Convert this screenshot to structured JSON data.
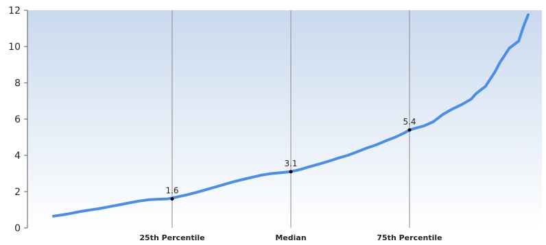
{
  "chart_data": {
    "type": "line",
    "title": "",
    "xlabel": "",
    "ylabel": "",
    "ylim": [
      0,
      12
    ],
    "yticks": [
      "0",
      "2",
      "4",
      "6",
      "8",
      "10",
      "12"
    ],
    "xlim": [
      0,
      100
    ],
    "grid": {
      "x": true,
      "y": false
    },
    "background": {
      "top": "#c9d9ee",
      "bottom": "#ffffff"
    },
    "colors": {
      "line": "#4b8ee6",
      "grid": "#8a8a8a",
      "axis": "#555555",
      "marker": "#000000"
    },
    "xticks": [
      {
        "x": 25,
        "label": "25th Percentile"
      },
      {
        "x": 50,
        "label": "Median"
      },
      {
        "x": 75,
        "label": "75th Percentile"
      }
    ],
    "markers": [
      {
        "x": 25,
        "y": 1.6,
        "label": "1.6"
      },
      {
        "x": 50,
        "y": 3.1,
        "label": "3.1"
      },
      {
        "x": 75,
        "y": 5.4,
        "label": "5.4"
      }
    ],
    "series": [
      {
        "x": [
          0,
          2,
          4,
          6,
          8,
          10,
          12,
          14,
          16,
          18,
          20,
          22,
          24,
          25,
          28,
          30,
          32,
          34,
          36,
          38,
          40,
          42,
          44,
          46,
          48,
          50,
          52,
          54,
          56,
          58,
          60,
          62,
          64,
          66,
          68,
          70,
          72,
          74,
          75,
          76,
          78,
          80,
          82,
          84,
          86,
          88,
          89,
          90,
          91,
          92,
          93,
          94,
          95,
          96,
          97,
          98,
          99,
          100
        ],
        "values": [
          0.65,
          0.72,
          0.82,
          0.92,
          1.0,
          1.08,
          1.18,
          1.28,
          1.38,
          1.48,
          1.55,
          1.58,
          1.6,
          1.65,
          1.82,
          1.95,
          2.1,
          2.25,
          2.4,
          2.55,
          2.68,
          2.8,
          2.92,
          3.0,
          3.05,
          3.1,
          3.22,
          3.38,
          3.52,
          3.68,
          3.85,
          4.0,
          4.2,
          4.4,
          4.58,
          4.8,
          5.0,
          5.25,
          5.4,
          5.48,
          5.62,
          5.85,
          6.25,
          6.55,
          6.8,
          7.1,
          7.4,
          7.6,
          7.8,
          8.2,
          8.6,
          9.1,
          9.5,
          9.9,
          10.1,
          10.3,
          11.1,
          11.75
        ]
      }
    ]
  }
}
